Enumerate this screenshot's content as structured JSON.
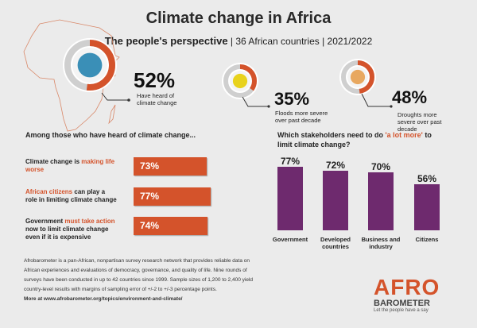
{
  "header": {
    "title": "Climate change in Africa",
    "subtitle_bold": "The people's perspective",
    "subtitle_rest": " | 36 African countries | 2021/2022"
  },
  "stats": [
    {
      "value": "52%",
      "fraction": 0.52,
      "label": "Have heard of climate change",
      "icon": "globe-icon"
    },
    {
      "value": "35%",
      "fraction": 0.35,
      "label": "Floods more severe over past decade",
      "icon": "flood-wave-icon"
    },
    {
      "value": "48%",
      "fraction": 0.48,
      "label": "Droughts more severe over past decade",
      "icon": "drought-icon"
    }
  ],
  "left_section": {
    "title": "Among those who have heard of climate change...",
    "rows": [
      {
        "pre": "Climate change is ",
        "hl": "making life worse",
        "post": "",
        "value": "73%",
        "pct": 73
      },
      {
        "pre": "",
        "hl": "African citizens",
        "post": " can play a role in limiting climate change",
        "value": "77%",
        "pct": 77
      },
      {
        "pre": "Government ",
        "hl": "must take action",
        "post": " now to limit climate change even if it is expensive",
        "value": "74%",
        "pct": 74
      }
    ]
  },
  "chart_data": {
    "type": "bar",
    "title_pre": "Which stakeholders need to do ",
    "title_hl": "'a lot more'",
    "title_post": " to limit climate change?",
    "categories": [
      "Government",
      "Developed countries",
      "Business and industry",
      "Citizens"
    ],
    "values": [
      77,
      72,
      70,
      56
    ],
    "value_labels": [
      "77%",
      "72%",
      "70%",
      "56%"
    ],
    "bar_color": "#6e2a6e",
    "ylim": [
      0,
      100
    ]
  },
  "footer": {
    "text": "Afrobarometer is a pan-African, nonpartisan survey research network that provides reliable data on African experiences and evaluations of democracy, governance, and quality of life. Nine rounds of surveys have been conducted in up to 42 countries since 1999. Sample sizes of 1,200 to 2,400 yield country-level results with margins of sampling error of +/-2 to +/-3 percentage points.",
    "more": "More at www.afrobarometer.org/topics/environment-and-climate/"
  },
  "logo": {
    "line1": "AFRO",
    "line2": "BAROMETER",
    "tagline": "Let the people have a say"
  },
  "colors": {
    "accent": "#d4532b",
    "purple": "#6e2a6e",
    "ring": "#cfcfcf"
  }
}
